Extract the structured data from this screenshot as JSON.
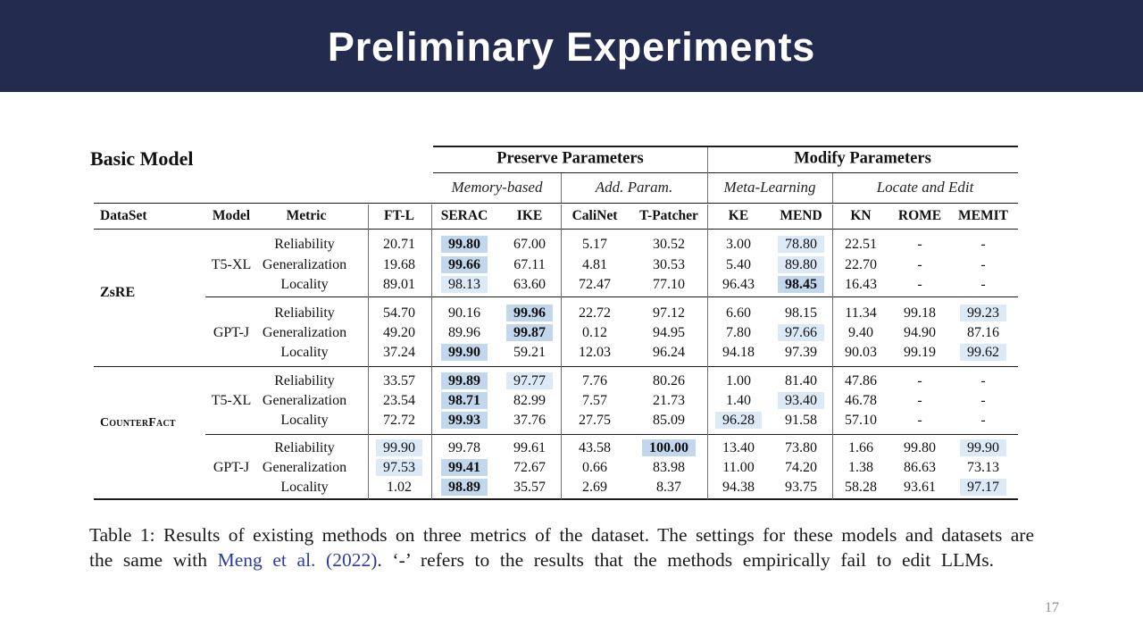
{
  "slide": {
    "title": "Preliminary Experiments",
    "page_number": "17",
    "header_bg": "#232c4e",
    "highlight_light": "#dce9f6",
    "highlight_strong": "#c2d6ec",
    "link_color": "#2e3d9b"
  },
  "table": {
    "label": "Basic Model",
    "group_headers": [
      {
        "label": "Preserve Parameters"
      },
      {
        "label": "Modify Parameters"
      }
    ],
    "subgroup_headers": [
      "Memory-based",
      "Add. Param.",
      "Meta-Learning",
      "Locate and Edit"
    ],
    "columns": [
      "DataSet",
      "Model",
      "Metric",
      "FT-L",
      "SERAC",
      "IKE",
      "CaliNet",
      "T-Patcher",
      "KE",
      "MEND",
      "KN",
      "ROME",
      "MEMIT"
    ],
    "datasets": [
      {
        "name": "ZsRE",
        "models": [
          {
            "name": "T5-XL",
            "rows": [
              {
                "metric": "Reliability",
                "values": [
                  "20.71",
                  {
                    "v": "99.80",
                    "hl": "strong"
                  },
                  "67.00",
                  "5.17",
                  "30.52",
                  "3.00",
                  {
                    "v": "78.80",
                    "hl": "light"
                  },
                  "22.51",
                  "-",
                  "-"
                ]
              },
              {
                "metric": "Generalization",
                "values": [
                  "19.68",
                  {
                    "v": "99.66",
                    "hl": "strong"
                  },
                  "67.11",
                  "4.81",
                  "30.53",
                  "5.40",
                  {
                    "v": "89.80",
                    "hl": "light"
                  },
                  "22.70",
                  "-",
                  "-"
                ]
              },
              {
                "metric": "Locality",
                "values": [
                  "89.01",
                  {
                    "v": "98.13",
                    "hl": "light"
                  },
                  "63.60",
                  "72.47",
                  "77.10",
                  "96.43",
                  {
                    "v": "98.45",
                    "hl": "strong"
                  },
                  "16.43",
                  "-",
                  "-"
                ]
              }
            ]
          },
          {
            "name": "GPT-J",
            "rows": [
              {
                "metric": "Reliability",
                "values": [
                  "54.70",
                  "90.16",
                  {
                    "v": "99.96",
                    "hl": "strong"
                  },
                  "22.72",
                  "97.12",
                  "6.60",
                  "98.15",
                  "11.34",
                  "99.18",
                  {
                    "v": "99.23",
                    "hl": "light"
                  }
                ]
              },
              {
                "metric": "Generalization",
                "values": [
                  "49.20",
                  "89.96",
                  {
                    "v": "99.87",
                    "hl": "strong"
                  },
                  "0.12",
                  "94.95",
                  "7.80",
                  {
                    "v": "97.66",
                    "hl": "light"
                  },
                  "9.40",
                  "94.90",
                  "87.16"
                ]
              },
              {
                "metric": "Locality",
                "values": [
                  "37.24",
                  {
                    "v": "99.90",
                    "hl": "strong"
                  },
                  "59.21",
                  "12.03",
                  "96.24",
                  "94.18",
                  "97.39",
                  "90.03",
                  "99.19",
                  {
                    "v": "99.62",
                    "hl": "light"
                  }
                ]
              }
            ]
          }
        ]
      },
      {
        "name": "CounterFact",
        "models": [
          {
            "name": "T5-XL",
            "rows": [
              {
                "metric": "Reliability",
                "values": [
                  "33.57",
                  {
                    "v": "99.89",
                    "hl": "strong"
                  },
                  {
                    "v": "97.77",
                    "hl": "light"
                  },
                  "7.76",
                  "80.26",
                  "1.00",
                  "81.40",
                  "47.86",
                  "-",
                  "-"
                ]
              },
              {
                "metric": "Generalization",
                "values": [
                  "23.54",
                  {
                    "v": "98.71",
                    "hl": "strong"
                  },
                  "82.99",
                  "7.57",
                  "21.73",
                  "1.40",
                  {
                    "v": "93.40",
                    "hl": "light"
                  },
                  "46.78",
                  "-",
                  "-"
                ]
              },
              {
                "metric": "Locality",
                "values": [
                  "72.72",
                  {
                    "v": "99.93",
                    "hl": "strong"
                  },
                  "37.76",
                  "27.75",
                  "85.09",
                  {
                    "v": "96.28",
                    "hl": "light"
                  },
                  "91.58",
                  "57.10",
                  "-",
                  "-"
                ]
              }
            ]
          },
          {
            "name": "GPT-J",
            "rows": [
              {
                "metric": "Reliability",
                "values": [
                  {
                    "v": "99.90",
                    "hl": "light"
                  },
                  "99.78",
                  "99.61",
                  "43.58",
                  {
                    "v": "100.00",
                    "hl": "strong"
                  },
                  "13.40",
                  "73.80",
                  "1.66",
                  "99.80",
                  {
                    "v": "99.90",
                    "hl": "light"
                  }
                ]
              },
              {
                "metric": "Generalization",
                "values": [
                  {
                    "v": "97.53",
                    "hl": "light"
                  },
                  {
                    "v": "99.41",
                    "hl": "strong"
                  },
                  "72.67",
                  "0.66",
                  "83.98",
                  "11.00",
                  "74.20",
                  "1.38",
                  "86.63",
                  "73.13"
                ]
              },
              {
                "metric": "Locality",
                "values": [
                  "1.02",
                  {
                    "v": "98.89",
                    "hl": "strong"
                  },
                  "35.57",
                  "2.69",
                  "8.37",
                  "94.38",
                  "93.75",
                  "58.28",
                  "93.61",
                  {
                    "v": "97.17",
                    "hl": "light"
                  }
                ]
              }
            ]
          }
        ]
      }
    ]
  },
  "caption": {
    "line1": "Table 1: Results of existing methods on three metrics of the dataset. The settings for these models and datasets are",
    "line2_pre": "the same with ",
    "citation": "Meng et al. (2022)",
    "line2_post": ". ‘-’ refers to the results that the methods empirically fail to edit LLMs."
  }
}
